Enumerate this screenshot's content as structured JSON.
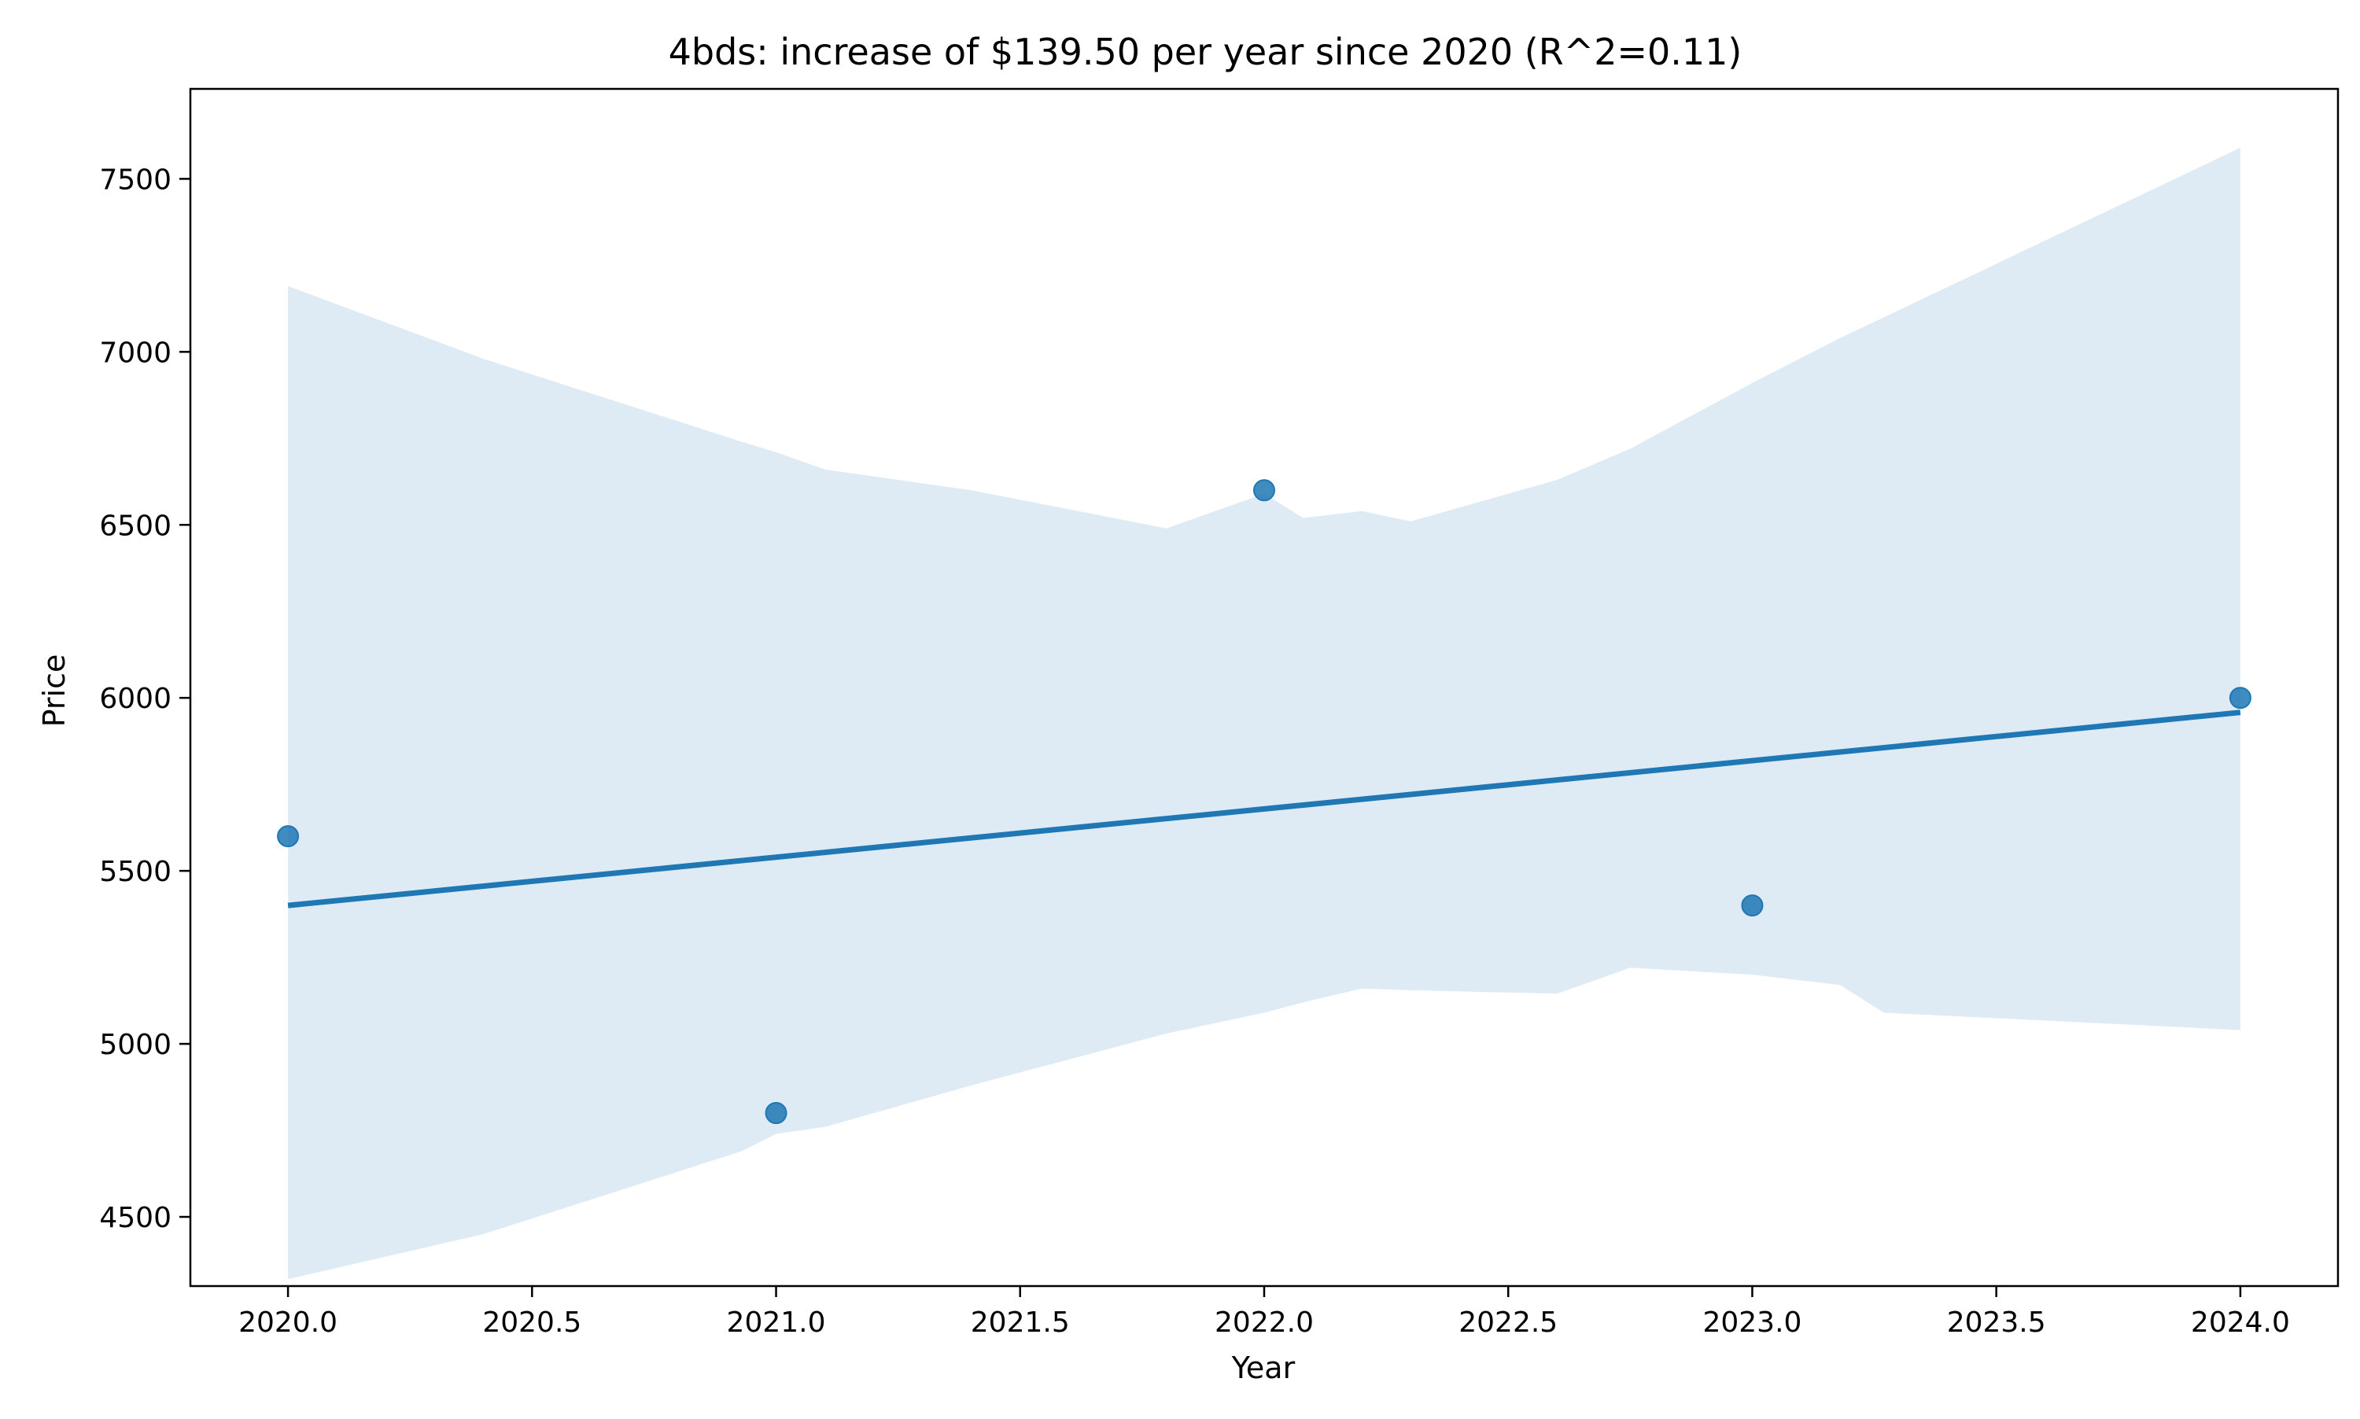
{
  "chart_data": {
    "type": "scatter",
    "title": "4bds: increase of $139.50 per year since 2020 (R^2=0.11)",
    "xlabel": "Year",
    "ylabel": "Price",
    "xlim": [
      2019.8,
      2024.2
    ],
    "ylim": [
      4300,
      7760
    ],
    "x_ticks": [
      2020.0,
      2020.5,
      2021.0,
      2021.5,
      2022.0,
      2022.5,
      2023.0,
      2023.5,
      2024.0
    ],
    "x_tick_labels": [
      "2020.0",
      "2020.5",
      "2021.0",
      "2021.5",
      "2022.0",
      "2022.5",
      "2023.0",
      "2023.5",
      "2024.0"
    ],
    "y_ticks": [
      4500,
      5000,
      5500,
      6000,
      6500,
      7000,
      7500
    ],
    "y_tick_labels": [
      "4500",
      "5000",
      "5500",
      "6000",
      "6500",
      "7000",
      "7500"
    ],
    "grid": false,
    "series": [
      {
        "points": [
          {
            "x": 2020,
            "y": 5600
          },
          {
            "x": 2021,
            "y": 4800
          },
          {
            "x": 2022,
            "y": 6600
          },
          {
            "x": 2023,
            "y": 5400
          },
          {
            "x": 2024,
            "y": 6000
          }
        ],
        "color": "#1f77b4"
      }
    ],
    "regression_line": {
      "x": [
        2020,
        2024
      ],
      "y": [
        5400,
        5958
      ],
      "color": "#1f77b4"
    },
    "confidence_band": {
      "color": "#1f77b4",
      "opacity": 0.15,
      "x": [
        2020.0,
        2020.4,
        2020.93,
        2021.0,
        2021.1,
        2021.4,
        2021.8,
        2022.0,
        2022.08,
        2022.2,
        2022.3,
        2022.6,
        2022.75,
        2023.0,
        2023.18,
        2023.27,
        2024.0
      ],
      "upper": [
        7190,
        6980,
        6740,
        6710,
        6660,
        6600,
        6490,
        6590,
        6520,
        6540,
        6510,
        6630,
        6720,
        6910,
        7040,
        7100,
        7590
      ],
      "lower": [
        4320,
        4450,
        4690,
        4740,
        4760,
        4880,
        5030,
        5090,
        5120,
        5160,
        5155,
        5145,
        5220,
        5200,
        5170,
        5090,
        5040
      ]
    }
  }
}
